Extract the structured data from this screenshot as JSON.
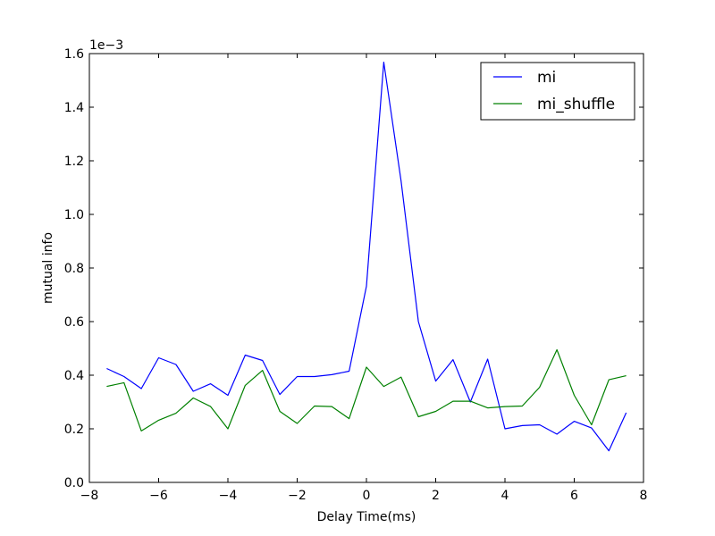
{
  "chart_data": {
    "type": "line",
    "title": "",
    "xlabel": "Delay Time(ms)",
    "ylabel": "mutual info",
    "y_offset_label": "1e−3",
    "xlim": [
      -8,
      8
    ],
    "ylim": [
      0.0,
      1.6
    ],
    "x_ticks": [
      -8,
      -6,
      -4,
      -2,
      0,
      2,
      4,
      6,
      8
    ],
    "x_tick_labels": [
      "−8",
      "−6",
      "−4",
      "−2",
      "0",
      "2",
      "4",
      "6",
      "8"
    ],
    "y_ticks": [
      0.0,
      0.2,
      0.4,
      0.6,
      0.8,
      1.0,
      1.2,
      1.4,
      1.6
    ],
    "y_tick_labels": [
      "0.0",
      "0.2",
      "0.4",
      "0.6",
      "0.8",
      "1.0",
      "1.2",
      "1.4",
      "1.6"
    ],
    "grid": false,
    "legend_position": "top-right",
    "x": [
      -7.5,
      -7.0,
      -6.5,
      -6.0,
      -5.5,
      -5.0,
      -4.5,
      -4.0,
      -3.5,
      -3.0,
      -2.5,
      -2.0,
      -1.5,
      -1.0,
      -0.5,
      0.0,
      0.5,
      1.0,
      1.5,
      2.0,
      2.5,
      3.0,
      3.5,
      4.0,
      4.5,
      5.0,
      5.5,
      6.0,
      6.5,
      7.0,
      7.5
    ],
    "series": [
      {
        "name": "mi",
        "color": "#0000ff",
        "values": [
          0.425,
          0.395,
          0.35,
          0.465,
          0.44,
          0.34,
          0.368,
          0.325,
          0.475,
          0.455,
          0.328,
          0.395,
          0.395,
          0.402,
          0.415,
          0.732,
          1.568,
          1.125,
          0.6,
          0.378,
          0.458,
          0.3,
          0.46,
          0.2,
          0.212,
          0.215,
          0.18,
          0.228,
          0.203,
          0.118,
          0.26
        ]
      },
      {
        "name": "mi_shuffle",
        "color": "#008000",
        "values": [
          0.358,
          0.372,
          0.192,
          0.232,
          0.258,
          0.315,
          0.283,
          0.2,
          0.362,
          0.418,
          0.265,
          0.22,
          0.285,
          0.283,
          0.238,
          0.43,
          0.358,
          0.393,
          0.245,
          0.265,
          0.303,
          0.303,
          0.278,
          0.283,
          0.285,
          0.355,
          0.495,
          0.325,
          0.215,
          0.383,
          0.398
        ]
      }
    ]
  }
}
